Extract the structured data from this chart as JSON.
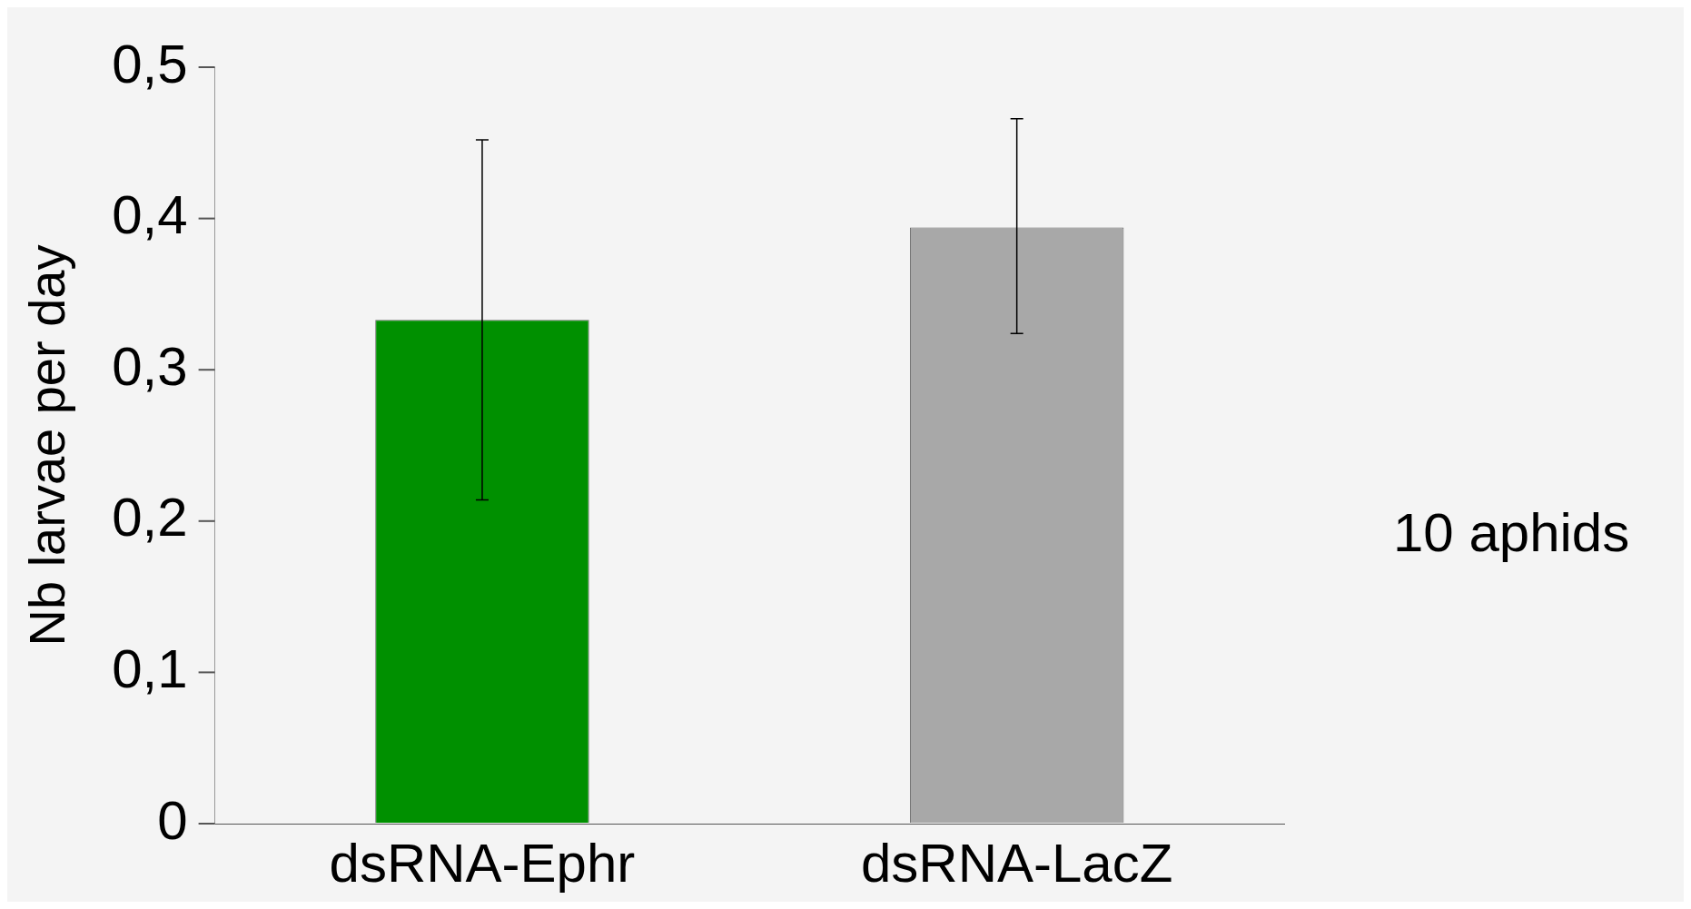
{
  "chart_data": {
    "type": "bar",
    "ylabel": "Nb larvae per day",
    "categories": [
      "dsRNA-Ephr",
      "dsRNA-LacZ"
    ],
    "values": [
      0.333,
      0.394
    ],
    "colors": [
      "#009000",
      "#a8a8a8"
    ],
    "errors": [
      [
        0.214,
        0.452
      ],
      [
        0.324,
        0.466
      ]
    ],
    "ylim": [
      0,
      0.5
    ],
    "yticks": [
      {
        "value": 0,
        "label": "0"
      },
      {
        "value": 0.1,
        "label": "0,1"
      },
      {
        "value": 0.2,
        "label": "0,2"
      },
      {
        "value": 0.3,
        "label": "0,3"
      },
      {
        "value": 0.4,
        "label": "0,4"
      },
      {
        "value": 0.5,
        "label": "0,5"
      }
    ],
    "annotations": [
      "10 aphids"
    ],
    "grid": false,
    "legend": false
  }
}
